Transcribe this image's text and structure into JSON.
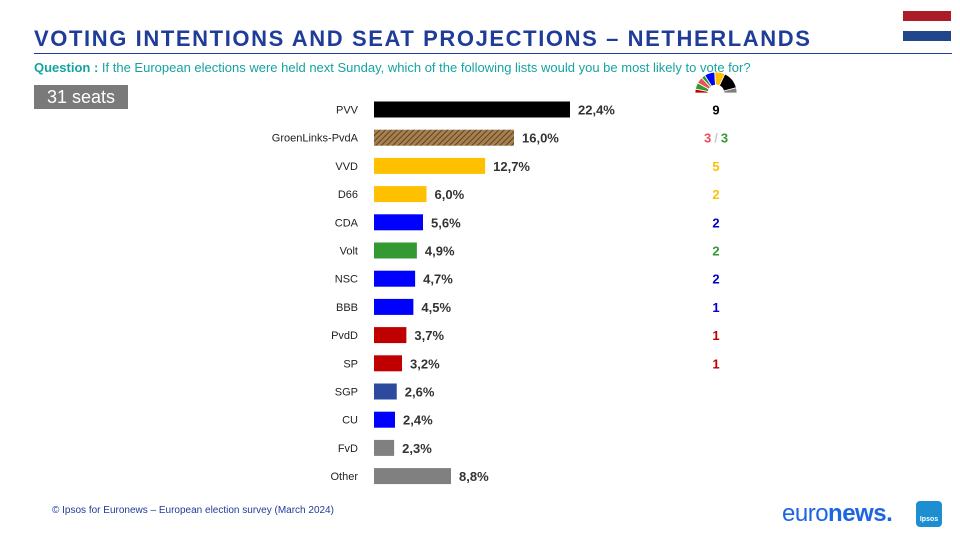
{
  "header": {
    "title": "VOTING INTENTIONS AND SEAT PROJECTIONS – NETHERLANDS",
    "question_label": "Question :",
    "question_text": "If the European elections were held next Sunday, which of the following lists would you be most likely to vote for?",
    "seats_badge": "31 seats"
  },
  "colors": {
    "title": "#1f3c99",
    "question": "#15a3a0",
    "flag": [
      "#ad1d28",
      "#ffffff",
      "#21468b"
    ]
  },
  "chart_data": {
    "type": "bar",
    "orientation": "horizontal",
    "categories": [
      "PVV",
      "GroenLinks-PvdA",
      "VVD",
      "D66",
      "CDA",
      "Volt",
      "NSC",
      "BBB",
      "PvdD",
      "SP",
      "SGP",
      "CU",
      "FvD",
      "Other"
    ],
    "values": [
      22.4,
      16.0,
      12.7,
      6.0,
      5.6,
      4.9,
      4.7,
      4.5,
      3.7,
      3.2,
      2.6,
      2.4,
      2.3,
      8.8
    ],
    "value_labels": [
      "22,4%",
      "16,0%",
      "12,7%",
      "6,0%",
      "5,6%",
      "4,9%",
      "4,7%",
      "4,5%",
      "3,7%",
      "3,2%",
      "2,6%",
      "2,4%",
      "2,3%",
      "8,8%"
    ],
    "bar_colors": [
      "#000000",
      "#8b6a3e",
      "#ffc000",
      "#ffc000",
      "#0000ff",
      "#339933",
      "#0000ff",
      "#0000ff",
      "#c00000",
      "#c00000",
      "#2e4a9e",
      "#0000ff",
      "#808080",
      "#808080"
    ],
    "hatched": [
      false,
      true,
      false,
      false,
      false,
      false,
      false,
      false,
      false,
      false,
      false,
      false,
      false,
      false
    ],
    "xlim": [
      0,
      22.4
    ],
    "seats": [
      {
        "parts": [
          {
            "text": "9",
            "color": "#000000"
          }
        ]
      },
      {
        "parts": [
          {
            "text": "3",
            "color": "#e8505b"
          },
          {
            "text": "/",
            "color": "#cccccc"
          },
          {
            "text": "3",
            "color": "#339933"
          }
        ]
      },
      {
        "parts": [
          {
            "text": "5",
            "color": "#ffc000"
          }
        ]
      },
      {
        "parts": [
          {
            "text": "2",
            "color": "#ffc000"
          }
        ]
      },
      {
        "parts": [
          {
            "text": "2",
            "color": "#0000cc"
          }
        ]
      },
      {
        "parts": [
          {
            "text": "2",
            "color": "#339933"
          }
        ]
      },
      {
        "parts": [
          {
            "text": "2",
            "color": "#0000cc"
          }
        ]
      },
      {
        "parts": [
          {
            "text": "1",
            "color": "#0000cc"
          }
        ]
      },
      {
        "parts": [
          {
            "text": "1",
            "color": "#c00000"
          }
        ]
      },
      {
        "parts": [
          {
            "text": "1",
            "color": "#c00000"
          }
        ]
      }
    ],
    "parliament_icon_segments": [
      {
        "color": "#c00000",
        "share": 0.06
      },
      {
        "color": "#339933",
        "share": 0.1
      },
      {
        "color": "#e8505b",
        "share": 0.1
      },
      {
        "color": "#339933",
        "share": 0.06
      },
      {
        "color": "#0000ff",
        "share": 0.16
      },
      {
        "color": "#ffc000",
        "share": 0.16
      },
      {
        "color": "#000000",
        "share": 0.28
      },
      {
        "color": "#808080",
        "share": 0.08
      }
    ]
  },
  "footer": {
    "source": "© Ipsos for Euronews – European election survey (March 2024)",
    "logo_prefix": "euro",
    "logo_suffix": "news.",
    "ipsos_label": "Ipsos"
  }
}
